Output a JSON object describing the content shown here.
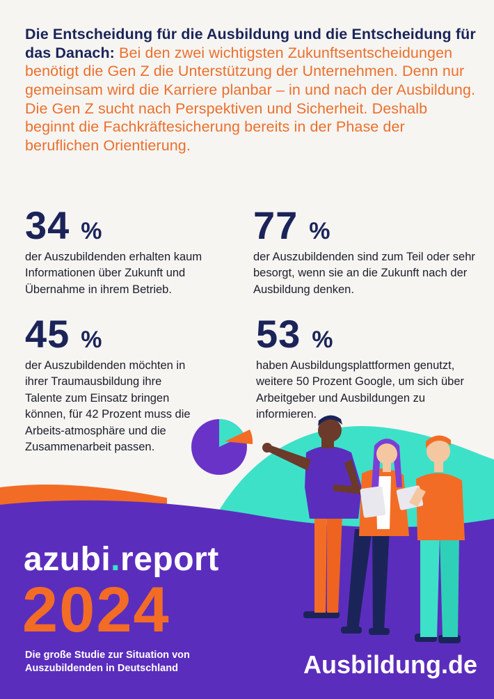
{
  "intro": {
    "lead": "Die Entscheidung für die Ausbildung und die Entscheidung für das Danach:",
    "rest": "Bei den zwei wichtigsten Zukunftsentscheidungen benötigt die Gen Z die Unterstützung der Unternehmen. Denn nur gemeinsam wird die Karriere planbar – in und nach der Ausbildung. Die Gen Z sucht nach Perspektiven und Sicherheit. Deshalb beginnt die Fachkräftesicherung bereits in der Phase der beruflichen Orientierung."
  },
  "stats": [
    {
      "value": "34",
      "unit": "%",
      "text": "der Auszubildenden erhalten kaum Informationen über Zukunft und Übernahme in ihrem Betrieb."
    },
    {
      "value": "77",
      "unit": "%",
      "text": "der Auszubildenden sind zum Teil oder sehr besorgt, wenn sie an die Zukunft nach der Ausbildung denken."
    },
    {
      "value": "45",
      "unit": "%",
      "text": "der Auszubildenden möchten in ihrer Traumausbildung ihre Talente zum Einsatz bringen können, für 42 Prozent muss die Arbeits-atmosphäre und die Zusammenarbeit passen."
    },
    {
      "value": "53",
      "unit": "%",
      "text": "haben Ausbildungsplattformen genutzt, weitere 50 Prozent Google, um sich über Arbeitgeber und Ausbildungen zu informieren."
    }
  ],
  "brand": {
    "name_a": "azubi",
    "dot": ".",
    "name_b": "report",
    "year": "2024"
  },
  "subtitle": "Die große Studie zur Situation von Auszubildenden in Deutschland",
  "logo": {
    "text": "Ausbildung.de"
  },
  "colors": {
    "navy": "#1b2459",
    "orange": "#ec6f2c",
    "purple": "#5b2dbd",
    "turquoise": "#3de1c8"
  }
}
